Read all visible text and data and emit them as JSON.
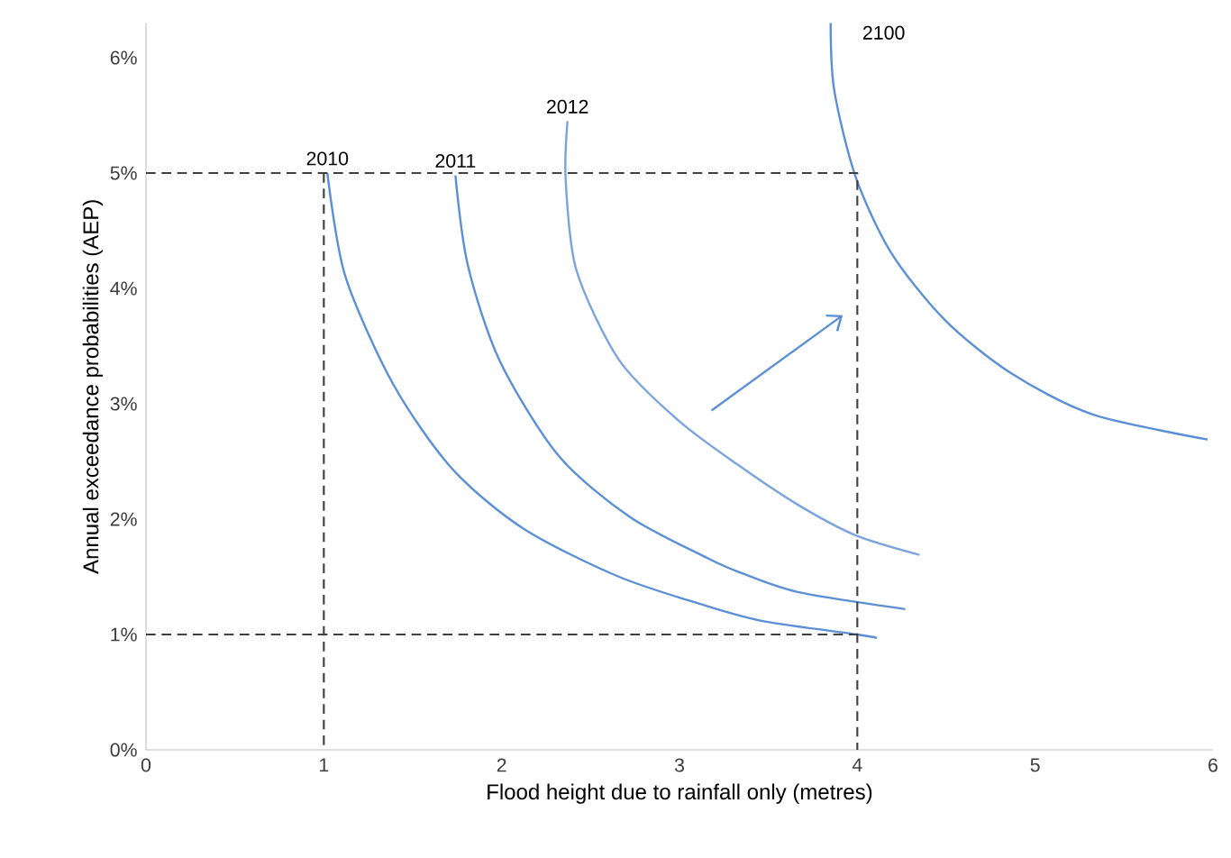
{
  "chart_data": {
    "type": "line",
    "xlabel": "Flood height due to rainfall only (metres)",
    "ylabel": "Annual exceedance probabilities (AEP)",
    "xlim": [
      0,
      6
    ],
    "ylim": [
      0,
      6.3
    ],
    "xticks": [
      0,
      1,
      2,
      3,
      4,
      5,
      6
    ],
    "yticks": [
      {
        "value": 0,
        "label": "0%"
      },
      {
        "value": 1,
        "label": "1%"
      },
      {
        "value": 2,
        "label": "2%"
      },
      {
        "value": 3,
        "label": "3%"
      },
      {
        "value": 4,
        "label": "4%"
      },
      {
        "value": 5,
        "label": "5%"
      },
      {
        "value": 6,
        "label": "6%"
      }
    ],
    "grid": false,
    "marker": "none",
    "series": [
      {
        "name": "2010",
        "color": "#5b8fd6",
        "x": [
          1.02,
          1.12,
          1.39,
          1.72,
          2.12,
          2.66,
          3.19,
          3.49,
          4.0,
          4.11
        ],
        "values": [
          5.0,
          4.11,
          3.17,
          2.44,
          1.92,
          1.5,
          1.23,
          1.11,
          1.0,
          0.97
        ]
      },
      {
        "name": "2011",
        "color": "#5b8fd6",
        "x": [
          1.74,
          1.81,
          1.99,
          2.32,
          2.72,
          3.16,
          3.32,
          3.66,
          4.27
        ],
        "values": [
          4.98,
          4.2,
          3.37,
          2.55,
          2.02,
          1.66,
          1.55,
          1.37,
          1.22
        ]
      },
      {
        "name": "2012",
        "color": "#7ba4de",
        "x": [
          2.37,
          2.36,
          2.42,
          2.66,
          2.99,
          3.32,
          3.66,
          3.99,
          4.35
        ],
        "values": [
          5.45,
          4.94,
          4.16,
          3.38,
          2.86,
          2.48,
          2.13,
          1.86,
          1.69
        ]
      },
      {
        "name": "2100",
        "color": "#5b8fd6",
        "x": [
          3.85,
          3.87,
          3.99,
          4.19,
          4.49,
          4.86,
          5.32,
          5.97
        ],
        "values": [
          6.3,
          5.72,
          4.97,
          4.31,
          3.73,
          3.27,
          2.91,
          2.69
        ]
      },
      {
        "color": "#404040",
        "line_style": "dashed",
        "x": [
          0,
          4,
          4
        ],
        "values": [
          5,
          5,
          0
        ]
      },
      {
        "color": "#404040",
        "line_style": "dashed",
        "x": [
          0,
          4
        ],
        "values": [
          1,
          1
        ]
      },
      {
        "color": "#404040",
        "line_style": "dashed",
        "x": [
          1,
          1
        ],
        "values": [
          5,
          0
        ]
      }
    ]
  }
}
